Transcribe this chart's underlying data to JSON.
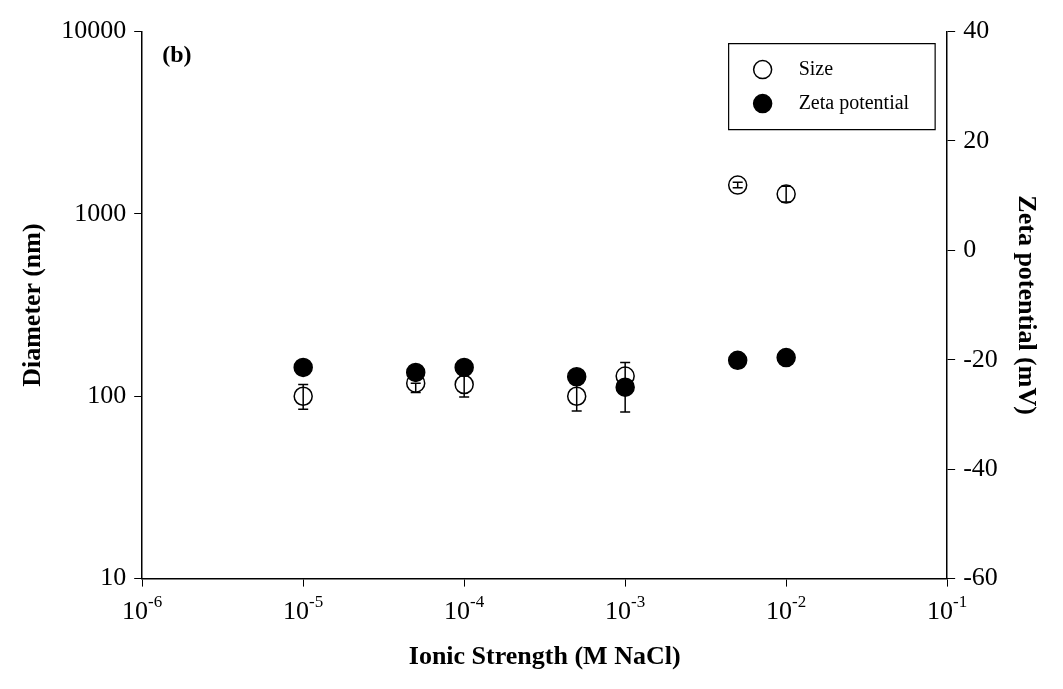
{
  "chart_data": {
    "type": "scatter",
    "xlabel": "Ionic Strength (M NaCl)",
    "ylabel": "Diameter (nm)",
    "y2label": "Zeta potential (mV)",
    "annotations": [
      "(b)"
    ],
    "x": [
      1e-05,
      5e-05,
      0.0001,
      0.0005,
      0.001,
      0.005,
      0.01
    ],
    "log": "xy",
    "grid": false,
    "legend": "top right",
    "marker": "circle",
    "xlim": [
      1e-06,
      0.1
    ],
    "xticks": [
      {
        "value": 1e-06,
        "label": "10$^{-6}$"
      },
      {
        "value": 1e-05,
        "label": "10$^{-5}$"
      },
      {
        "value": 0.0001,
        "label": "10$^{-4}$"
      },
      {
        "value": 0.001,
        "label": "10$^{-3}$"
      },
      {
        "value": 0.01,
        "label": "10$^{-2}$"
      },
      {
        "value": 0.1,
        "label": "10$^{-1}$"
      }
    ],
    "ylim": [
      10,
      10000
    ],
    "yticks": [
      10,
      100,
      1000,
      10000
    ],
    "y2lim": [
      -60,
      40
    ],
    "y2ticks": [
      -60,
      -40,
      -20,
      0,
      20,
      40
    ],
    "series": [
      {
        "name": "Size",
        "color": "#ffffff",
        "values": [
          100,
          118,
          116,
          100,
          129,
          1439,
          1285
        ],
        "errors": [
          [
            85,
            116
          ],
          [
            105,
            118
          ],
          [
            99,
            129
          ],
          [
            83,
            117
          ],
          [
            82,
            153
          ],
          [
            1390,
            1490
          ],
          [
            1164,
            1420
          ]
        ]
      },
      {
        "name": "Zeta potential",
        "color": "#000000",
        "axis": "y2",
        "values": [
          -21.4,
          -22.3,
          -21.4,
          -23.1,
          -25.0,
          -20.1,
          -19.6
        ]
      }
    ]
  }
}
